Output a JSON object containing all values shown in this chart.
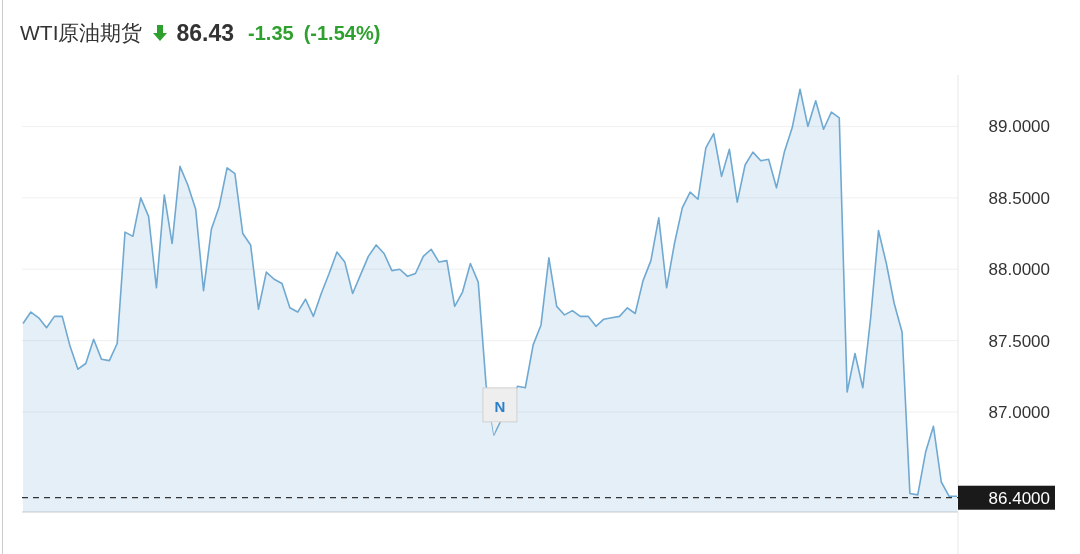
{
  "chart_data": {
    "type": "area",
    "title": "WTI原油期货",
    "annotations": [
      "86.43",
      "-1.35",
      "(-1.54%)",
      {
        "text": "N",
        "y": 86.84
      }
    ],
    "categories": [
      null,
      null,
      null,
      null,
      null,
      null,
      null,
      null,
      null,
      null,
      null,
      null,
      null,
      null,
      null,
      null,
      null,
      null,
      null,
      null,
      null,
      null,
      null,
      null,
      null,
      null,
      null,
      null,
      null,
      null,
      null,
      null,
      null,
      null,
      null,
      null,
      null,
      null,
      null,
      null,
      null,
      null,
      null,
      null,
      null,
      null,
      null,
      null,
      null,
      null,
      null,
      null,
      null,
      null,
      null,
      null,
      null,
      null,
      null,
      null,
      null,
      null,
      null,
      null,
      null,
      null,
      null,
      null,
      null,
      null,
      null,
      null,
      null,
      null,
      null,
      null,
      null,
      null,
      null,
      null,
      null,
      null,
      null,
      null,
      null,
      null,
      null,
      null,
      null,
      null,
      null,
      null,
      null,
      null,
      null,
      null,
      null,
      null,
      null,
      null,
      null,
      null,
      null,
      null,
      null,
      null,
      null,
      null,
      null,
      null,
      null,
      null,
      null,
      null,
      null,
      null,
      null,
      null,
      null,
      null
    ],
    "series": [
      {
        "color": "#6fa9d2",
        "values": [
          87.62,
          87.7,
          87.66,
          87.59,
          87.67,
          87.67,
          87.46,
          87.3,
          87.34,
          87.51,
          87.37,
          87.36,
          87.48,
          88.26,
          88.23,
          88.5,
          88.37,
          87.87,
          88.52,
          88.18,
          88.72,
          88.59,
          88.42,
          87.85,
          88.28,
          88.44,
          88.71,
          88.67,
          88.25,
          88.17,
          87.72,
          87.98,
          87.93,
          87.9,
          87.73,
          87.7,
          87.79,
          87.67,
          87.83,
          87.97,
          88.12,
          88.05,
          87.83,
          87.96,
          88.09,
          88.17,
          88.11,
          87.99,
          88.0,
          87.95,
          87.97,
          88.09,
          88.14,
          88.05,
          88.06,
          87.74,
          87.84,
          88.04,
          87.91,
          87.19,
          86.84,
          null,
          null,
          87.18,
          87.17,
          87.47,
          87.61,
          88.08,
          87.74,
          87.68,
          87.71,
          87.67,
          87.67,
          87.6,
          87.65,
          87.66,
          87.67,
          87.73,
          87.69,
          87.92,
          88.06,
          88.36,
          87.87,
          88.18,
          88.43,
          88.54,
          88.49,
          88.85,
          88.95,
          88.65,
          88.84,
          88.47,
          88.73,
          88.82,
          88.76,
          88.77,
          88.57,
          88.82,
          88.99,
          89.26,
          89.0,
          89.18,
          88.98,
          89.1,
          89.06,
          87.14,
          87.41,
          87.17,
          87.66,
          88.27,
          88.04,
          87.76,
          87.56,
          86.43,
          86.42,
          86.72,
          86.9,
          86.51,
          86.41,
          86.41
        ]
      }
    ],
    "ylim": [
      86.3,
      89.36
    ],
    "yticks": [
      {
        "value": 87,
        "label": "87.0000"
      },
      {
        "value": 87.5,
        "label": "87.5000"
      },
      {
        "value": 88,
        "label": "88.0000"
      },
      {
        "value": 88.5,
        "label": "88.5000"
      },
      {
        "value": 89,
        "label": "89.0000"
      }
    ],
    "ref_lines": [
      {
        "axis": "y",
        "value": 86.4,
        "label": "86.4000",
        "color": "#333333",
        "line_style": "dashed"
      }
    ],
    "grid": "y"
  }
}
